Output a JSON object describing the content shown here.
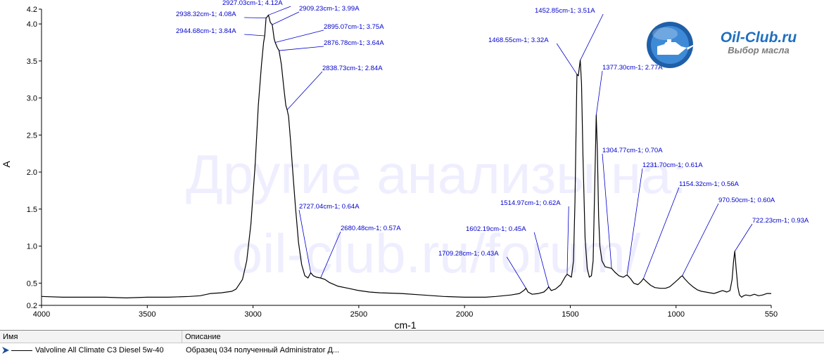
{
  "logo": {
    "title": "Oil-Club.ru",
    "subtitle": "Выбор масла"
  },
  "watermark": {
    "line1": "Другие анализы на:",
    "line2": "oil-club.ru/forum/"
  },
  "chart_data": {
    "type": "line",
    "xlabel": "cm-1",
    "ylabel": "A",
    "xlim": [
      4000,
      550
    ],
    "ylim": [
      0.2,
      4.2
    ],
    "x_ticks": [
      4000,
      3500,
      3000,
      2500,
      2000,
      1500,
      1000,
      550
    ],
    "y_ticks": [
      0.2,
      0.5,
      1.0,
      1.5,
      2.0,
      2.5,
      3.0,
      3.5,
      4.0,
      4.2
    ],
    "y_tick_labels": [
      "0.2",
      "0.5",
      "1.0",
      "1.5",
      "2.0",
      "2.5",
      "3.0",
      "3.5",
      "4.0",
      "4.2"
    ],
    "grid": false,
    "series": [
      {
        "name": "Valvoline All Climate C3 Diesel 5w-40",
        "color": "#000000",
        "points": [
          [
            4000,
            0.32
          ],
          [
            3900,
            0.31
          ],
          [
            3800,
            0.31
          ],
          [
            3700,
            0.31
          ],
          [
            3600,
            0.3
          ],
          [
            3500,
            0.31
          ],
          [
            3400,
            0.31
          ],
          [
            3300,
            0.32
          ],
          [
            3250,
            0.33
          ],
          [
            3200,
            0.36
          ],
          [
            3150,
            0.37
          ],
          [
            3100,
            0.39
          ],
          [
            3080,
            0.42
          ],
          [
            3050,
            0.55
          ],
          [
            3030,
            0.8
          ],
          [
            3010,
            1.3
          ],
          [
            2990,
            2.1
          ],
          [
            2975,
            2.9
          ],
          [
            2960,
            3.45
          ],
          [
            2950,
            3.75
          ],
          [
            2944.68,
            3.84
          ],
          [
            2938.32,
            4.08
          ],
          [
            2932,
            4.1
          ],
          [
            2927.03,
            4.12
          ],
          [
            2918,
            4.02
          ],
          [
            2909.23,
            3.99
          ],
          [
            2900,
            3.8
          ],
          [
            2895.07,
            3.75
          ],
          [
            2885,
            3.68
          ],
          [
            2876.78,
            3.64
          ],
          [
            2866,
            3.45
          ],
          [
            2855,
            3.15
          ],
          [
            2845,
            2.9
          ],
          [
            2838.73,
            2.84
          ],
          [
            2832,
            2.75
          ],
          [
            2822,
            2.4
          ],
          [
            2812,
            2.0
          ],
          [
            2800,
            1.55
          ],
          [
            2785,
            1.05
          ],
          [
            2770,
            0.75
          ],
          [
            2755,
            0.6
          ],
          [
            2740,
            0.57
          ],
          [
            2727.04,
            0.64
          ],
          [
            2715,
            0.6
          ],
          [
            2700,
            0.58
          ],
          [
            2680.48,
            0.57
          ],
          [
            2660,
            0.55
          ],
          [
            2640,
            0.51
          ],
          [
            2600,
            0.46
          ],
          [
            2550,
            0.43
          ],
          [
            2500,
            0.4
          ],
          [
            2450,
            0.38
          ],
          [
            2400,
            0.37
          ],
          [
            2300,
            0.36
          ],
          [
            2200,
            0.34
          ],
          [
            2100,
            0.32
          ],
          [
            2000,
            0.31
          ],
          [
            1900,
            0.31
          ],
          [
            1850,
            0.32
          ],
          [
            1780,
            0.34
          ],
          [
            1740,
            0.36
          ],
          [
            1720,
            0.4
          ],
          [
            1709.28,
            0.43
          ],
          [
            1700,
            0.38
          ],
          [
            1680,
            0.35
          ],
          [
            1650,
            0.36
          ],
          [
            1625,
            0.38
          ],
          [
            1610,
            0.42
          ],
          [
            1602.19,
            0.45
          ],
          [
            1590,
            0.4
          ],
          [
            1570,
            0.42
          ],
          [
            1545,
            0.48
          ],
          [
            1525,
            0.58
          ],
          [
            1514.97,
            0.62
          ],
          [
            1505,
            0.6
          ],
          [
            1495,
            0.58
          ],
          [
            1485,
            0.8
          ],
          [
            1478,
            1.6
          ],
          [
            1472,
            2.7
          ],
          [
            1468.55,
            3.32
          ],
          [
            1462,
            3.3
          ],
          [
            1458,
            3.4
          ],
          [
            1452.85,
            3.51
          ],
          [
            1447,
            3.2
          ],
          [
            1440,
            2.2
          ],
          [
            1430,
            1.1
          ],
          [
            1420,
            0.7
          ],
          [
            1410,
            0.58
          ],
          [
            1400,
            0.6
          ],
          [
            1392,
            0.8
          ],
          [
            1386,
            1.6
          ],
          [
            1380,
            2.4
          ],
          [
            1377.3,
            2.77
          ],
          [
            1372,
            2.3
          ],
          [
            1366,
            1.4
          ],
          [
            1360,
            1.0
          ],
          [
            1350,
            0.8
          ],
          [
            1335,
            0.72
          ],
          [
            1320,
            0.71
          ],
          [
            1304.77,
            0.7
          ],
          [
            1290,
            0.65
          ],
          [
            1270,
            0.6
          ],
          [
            1250,
            0.58
          ],
          [
            1231.7,
            0.61
          ],
          [
            1215,
            0.56
          ],
          [
            1200,
            0.5
          ],
          [
            1180,
            0.48
          ],
          [
            1165,
            0.52
          ],
          [
            1154.32,
            0.56
          ],
          [
            1140,
            0.52
          ],
          [
            1120,
            0.47
          ],
          [
            1100,
            0.44
          ],
          [
            1075,
            0.43
          ],
          [
            1050,
            0.43
          ],
          [
            1030,
            0.45
          ],
          [
            1010,
            0.5
          ],
          [
            990,
            0.55
          ],
          [
            980,
            0.58
          ],
          [
            970.5,
            0.6
          ],
          [
            960,
            0.56
          ],
          [
            940,
            0.5
          ],
          [
            920,
            0.45
          ],
          [
            900,
            0.41
          ],
          [
            880,
            0.39
          ],
          [
            860,
            0.38
          ],
          [
            840,
            0.37
          ],
          [
            820,
            0.36
          ],
          [
            800,
            0.38
          ],
          [
            780,
            0.4
          ],
          [
            760,
            0.38
          ],
          [
            745,
            0.4
          ],
          [
            735,
            0.55
          ],
          [
            728,
            0.8
          ],
          [
            722.23,
            0.93
          ],
          [
            716,
            0.7
          ],
          [
            708,
            0.45
          ],
          [
            700,
            0.34
          ],
          [
            690,
            0.31
          ],
          [
            680,
            0.33
          ],
          [
            670,
            0.34
          ],
          [
            650,
            0.33
          ],
          [
            630,
            0.35
          ],
          [
            610,
            0.33
          ],
          [
            590,
            0.34
          ],
          [
            570,
            0.36
          ],
          [
            550,
            0.36
          ]
        ]
      }
    ],
    "annotations": [
      {
        "label": "2927.03cm-1; 4.12A",
        "x": 2927.03,
        "y": 4.12
      },
      {
        "label": "2938.32cm-1; 4.08A",
        "x": 2938.32,
        "y": 4.08
      },
      {
        "label": "2944.68cm-1; 3.84A",
        "x": 2944.68,
        "y": 3.84
      },
      {
        "label": "2909.23cm-1; 3.99A",
        "x": 2909.23,
        "y": 3.99
      },
      {
        "label": "2895.07cm-1; 3.75A",
        "x": 2895.07,
        "y": 3.75
      },
      {
        "label": "2876.78cm-1; 3.64A",
        "x": 2876.78,
        "y": 3.64
      },
      {
        "label": "2838.73cm-1; 2.84A",
        "x": 2838.73,
        "y": 2.84
      },
      {
        "label": "2727.04cm-1; 0.64A",
        "x": 2727.04,
        "y": 0.64
      },
      {
        "label": "2680.48cm-1; 0.57A",
        "x": 2680.48,
        "y": 0.57
      },
      {
        "label": "1709.28cm-1; 0.43A",
        "x": 1709.28,
        "y": 0.43
      },
      {
        "label": "1602.19cm-1; 0.45A",
        "x": 1602.19,
        "y": 0.45
      },
      {
        "label": "1514.97cm-1; 0.62A",
        "x": 1514.97,
        "y": 0.62
      },
      {
        "label": "1468.55cm-1; 3.32A",
        "x": 1468.55,
        "y": 3.32
      },
      {
        "label": "1452.85cm-1; 3.51A",
        "x": 1452.85,
        "y": 3.51
      },
      {
        "label": "1377.30cm-1; 2.77A",
        "x": 1377.3,
        "y": 2.77
      },
      {
        "label": "1304.77cm-1; 0.70A",
        "x": 1304.77,
        "y": 0.7
      },
      {
        "label": "1231.70cm-1; 0.61A",
        "x": 1231.7,
        "y": 0.61
      },
      {
        "label": "1154.32cm-1; 0.56A",
        "x": 1154.32,
        "y": 0.56
      },
      {
        "label": "970.50cm-1; 0.60A",
        "x": 970.5,
        "y": 0.6
      },
      {
        "label": "722.23cm-1; 0.93A",
        "x": 722.23,
        "y": 0.93
      }
    ]
  },
  "legend_table": {
    "headers": {
      "name": "Имя",
      "description": "Описание"
    },
    "rows": [
      {
        "name": "Valvoline All Climate C3 Diesel 5w-40",
        "description": "Образец 034 полученный Administrator Д..."
      }
    ]
  }
}
